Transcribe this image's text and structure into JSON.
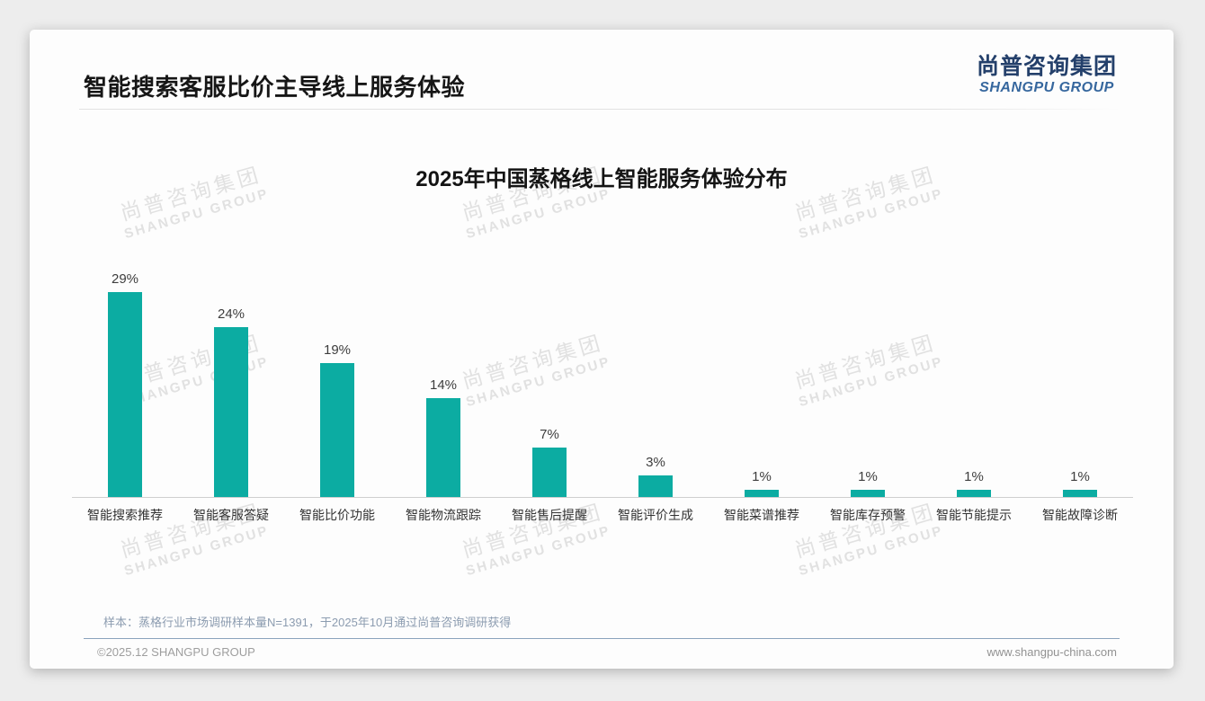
{
  "page": {
    "title": "智能搜索客服比价主导线上服务体验",
    "logo": {
      "zh": "尚普咨询集团",
      "en": "SHANGPU GROUP"
    },
    "watermark": {
      "zh": "尚普咨询集团",
      "en": "SHANGPU GROUP"
    },
    "sample_note": "样本：蒸格行业市场调研样本量N=1391，于2025年10月通过尚普咨询调研获得",
    "footer": {
      "copyright": "©2025.12 SHANGPU GROUP",
      "website": "www.shangpu-china.com"
    },
    "colors": {
      "accent": "#0caca2",
      "logo_zh": "#24406b",
      "logo_en": "#36679e",
      "note_text": "#8c9cb0",
      "footer_line": "#8ba3bd"
    }
  },
  "chart_data": {
    "type": "bar",
    "title": "2025年中国蒸格线上智能服务体验分布",
    "categories": [
      "智能搜索推荐",
      "智能客服答疑",
      "智能比价功能",
      "智能物流跟踪",
      "智能售后提醒",
      "智能评价生成",
      "智能菜谱推荐",
      "智能库存预警",
      "智能节能提示",
      "智能故障诊断"
    ],
    "values": [
      29,
      24,
      19,
      14,
      7,
      3,
      1,
      1,
      1,
      1
    ],
    "unit": "%",
    "value_labels": [
      "29%",
      "24%",
      "19%",
      "14%",
      "7%",
      "3%",
      "1%",
      "1%",
      "1%",
      "1%"
    ],
    "bar_color": "#0caca2",
    "xlabel": "",
    "ylabel": "",
    "ylim": [
      0,
      30
    ],
    "grid": false,
    "legend": null,
    "data_label_position": "above-bars",
    "y_axis_visible": false
  }
}
